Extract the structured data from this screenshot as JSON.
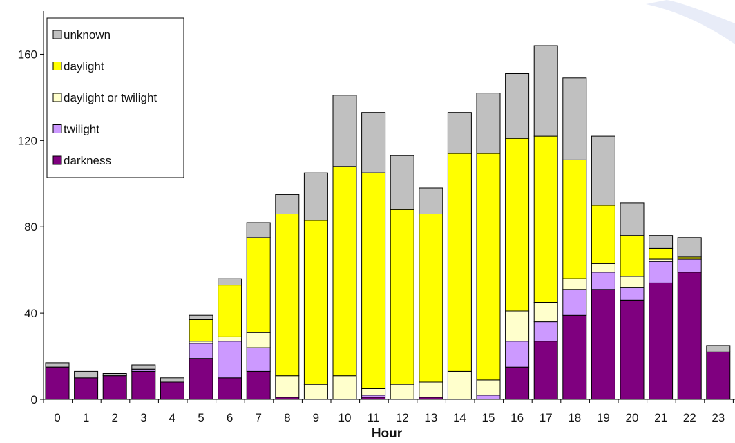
{
  "chart_data": {
    "type": "bar",
    "stacked": true,
    "title": "",
    "xlabel": "Hour",
    "ylabel": "",
    "ylim": [
      0,
      180
    ],
    "yticks": [
      0,
      40,
      80,
      120,
      160
    ],
    "grid": false,
    "legend_position": "top-left",
    "categories": [
      "0",
      "1",
      "2",
      "3",
      "4",
      "5",
      "6",
      "7",
      "8",
      "9",
      "10",
      "11",
      "12",
      "13",
      "14",
      "15",
      "16",
      "17",
      "18",
      "19",
      "20",
      "21",
      "22",
      "23"
    ],
    "series": [
      {
        "name": "darkness",
        "color": "#7f007f",
        "values": [
          15,
          10,
          11,
          13,
          8,
          19,
          10,
          13,
          1,
          0,
          0,
          1,
          0,
          1,
          0,
          0,
          15,
          27,
          39,
          51,
          46,
          54,
          59,
          22
        ]
      },
      {
        "name": "twilight",
        "color": "#cc99ff",
        "values": [
          0,
          0,
          0,
          1,
          0,
          7,
          17,
          11,
          0,
          0,
          0,
          1,
          0,
          0,
          0,
          2,
          12,
          9,
          12,
          8,
          6,
          10,
          6,
          0
        ]
      },
      {
        "name": "daylight or twilight",
        "color": "#ffffcc",
        "values": [
          0,
          0,
          0,
          0,
          0,
          1,
          2,
          7,
          10,
          7,
          11,
          3,
          7,
          7,
          13,
          7,
          14,
          9,
          5,
          4,
          5,
          1,
          0,
          0
        ]
      },
      {
        "name": "daylight",
        "color": "#ffff00",
        "values": [
          0,
          0,
          0,
          0,
          0,
          10,
          24,
          44,
          75,
          76,
          97,
          100,
          81,
          78,
          101,
          105,
          80,
          77,
          55,
          27,
          19,
          5,
          1,
          0
        ]
      },
      {
        "name": "unknown",
        "color": "#c0c0c0",
        "values": [
          2,
          3,
          1,
          2,
          2,
          2,
          3,
          7,
          9,
          22,
          33,
          28,
          25,
          12,
          19,
          28,
          30,
          42,
          38,
          32,
          15,
          6,
          9,
          3
        ]
      }
    ]
  }
}
